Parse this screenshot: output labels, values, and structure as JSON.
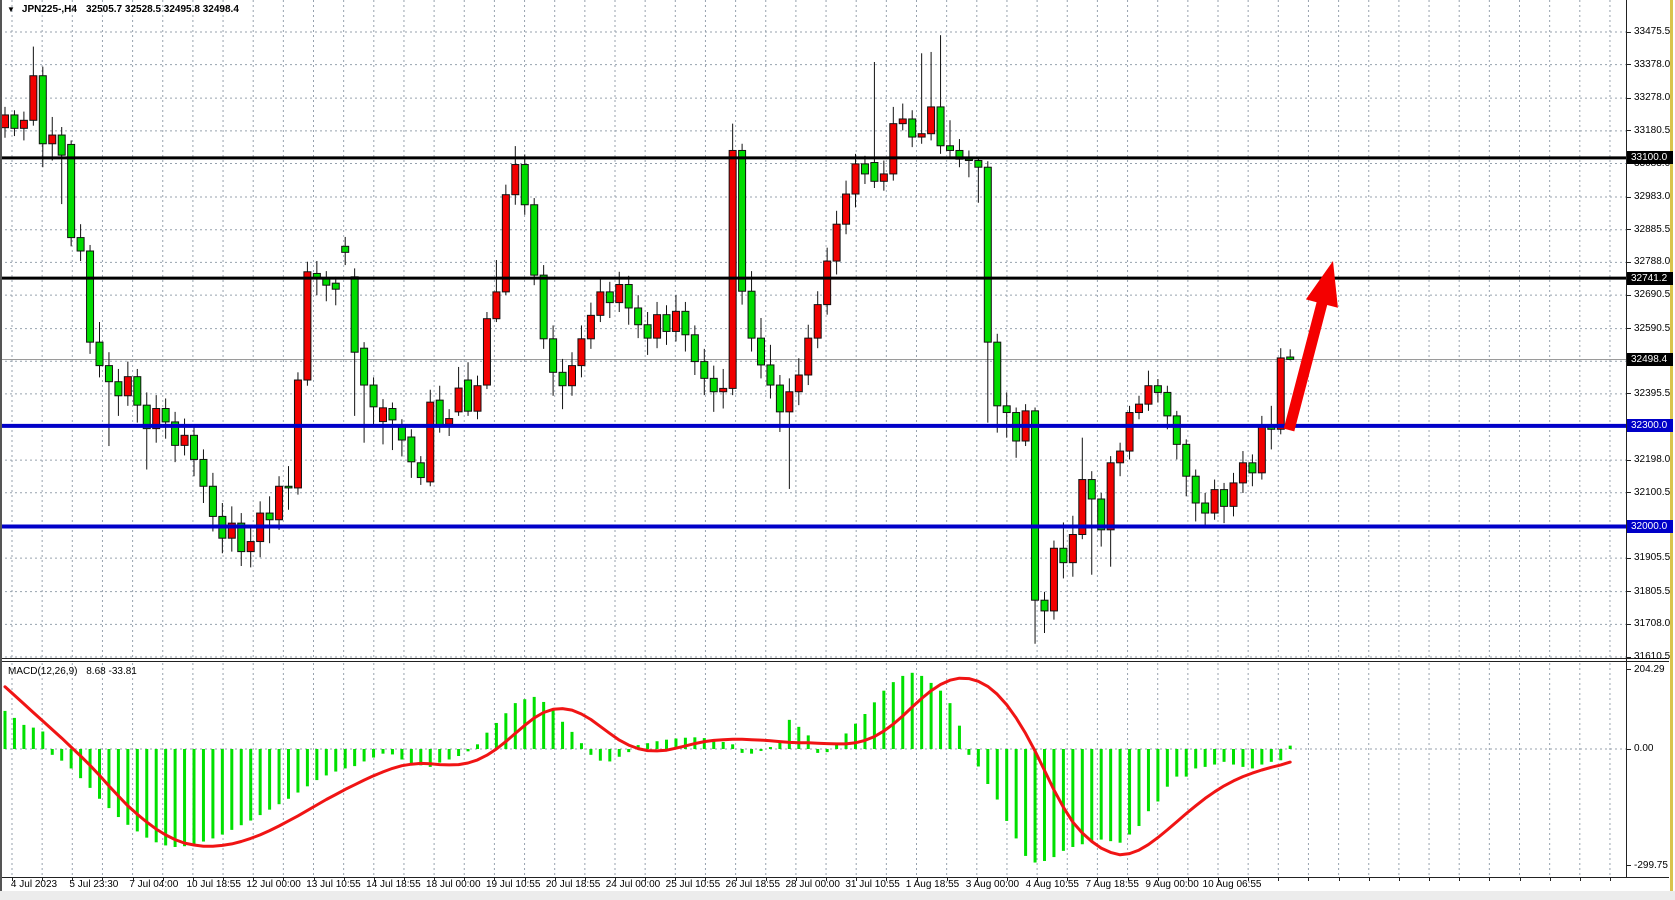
{
  "header": {
    "dropdown_icon": "▼",
    "symbol_period": "JPN225-,H4",
    "ohlc": "32505.7 32528.5 32495.8 32498.4"
  },
  "colors": {
    "background": "#ffffff",
    "grid": "#97a2ae",
    "candle_up": "#f20000",
    "candle_down": "#00dc00",
    "candle_outline": "#111111",
    "macd_histogram": "#00e000",
    "macd_signal": "#f01414",
    "hline_black": "#000000",
    "hline_blue": "#0000c8",
    "bid_line": "#9a9a9a",
    "arrow": "#f40000",
    "axis_text": "#000000",
    "window_edge_right": "#d9c44e",
    "bottom_strip": "#ececec"
  },
  "chart_data": {
    "type": "candlestick",
    "title": "JPN225-,H4",
    "symbol": "JPN225-",
    "timeframe": "H4",
    "current_bar": {
      "open": 32505.7,
      "high": 32528.5,
      "low": 32495.8,
      "close": 32498.4
    },
    "price_axis": {
      "side": "right",
      "ticks": [
        33475.5,
        33378.0,
        33278.0,
        33180.5,
        33083.0,
        32983.0,
        32885.5,
        32788.0,
        32690.5,
        32590.5,
        32395.5,
        32198.0,
        32100.5,
        31905.5,
        31805.5,
        31708.0,
        31610.5
      ],
      "hidden_grid_ticks": [
        32493.0
      ],
      "ylim": [
        31610.5,
        33475.5
      ]
    },
    "time_labels": [
      "4 Jul 2023",
      "5 Jul 23:30",
      "7 Jul 04:00",
      "10 Jul 18:55",
      "12 Jul 00:00",
      "13 Jul 10:55",
      "14 Jul 18:55",
      "18 Jul 00:00",
      "19 Jul 10:55",
      "20 Jul 18:55",
      "24 Jul 00:00",
      "25 Jul 10:55",
      "26 Jul 18:55",
      "28 Jul 00:00",
      "31 Jul 10:55",
      "1 Aug 18:55",
      "3 Aug 00:00",
      "4 Aug 10:55",
      "7 Aug 18:55",
      "9 Aug 00:00",
      "10 Aug 06:55"
    ],
    "hlines": [
      {
        "price": 33100.0,
        "label": "33100.0",
        "color": "#000000",
        "tag_bg": "#000000",
        "width": 3
      },
      {
        "price": 32741.2,
        "label": "32741.2",
        "color": "#000000",
        "tag_bg": "#000000",
        "width": 3
      },
      {
        "price": 32300.0,
        "label": "32300.0",
        "color": "#0000c8",
        "tag_bg": "#0000c8",
        "width": 4
      },
      {
        "price": 32000.0,
        "label": "32000.0",
        "color": "#0000c8",
        "tag_bg": "#0000c8",
        "width": 4
      }
    ],
    "bid_line": {
      "price": 32498.4,
      "label": "32498.4",
      "tag_bg": "#000000"
    },
    "candles_format": "[open, high, low, close]",
    "candles": [
      [
        33190,
        33252,
        33160,
        33228
      ],
      [
        33228,
        33242,
        33165,
        33188
      ],
      [
        33188,
        33238,
        33152,
        33212
      ],
      [
        33212,
        33432,
        33196,
        33345
      ],
      [
        33345,
        33372,
        33072,
        33142
      ],
      [
        33142,
        33222,
        33092,
        33168
      ],
      [
        33168,
        33192,
        32962,
        33108
      ],
      [
        33140,
        33152,
        32836,
        32862
      ],
      [
        32862,
        32902,
        32792,
        32822
      ],
      [
        32822,
        32840,
        32515,
        32550
      ],
      [
        32550,
        32610,
        32445,
        32480
      ],
      [
        32480,
        32520,
        32240,
        32432
      ],
      [
        32432,
        32470,
        32330,
        32390
      ],
      [
        32390,
        32492,
        32360,
        32447
      ],
      [
        32447,
        32470,
        32310,
        32362
      ],
      [
        32362,
        32400,
        32170,
        32292
      ],
      [
        32292,
        32392,
        32250,
        32352
      ],
      [
        32352,
        32382,
        32262,
        32312
      ],
      [
        32312,
        32342,
        32192,
        32242
      ],
      [
        32242,
        32322,
        32212,
        32272
      ],
      [
        32272,
        32300,
        32150,
        32200
      ],
      [
        32200,
        32230,
        32070,
        32120
      ],
      [
        32120,
        32160,
        31985,
        32030
      ],
      [
        32030,
        32070,
        31920,
        31965
      ],
      [
        31965,
        32060,
        31925,
        32010
      ],
      [
        32010,
        32040,
        31882,
        31925
      ],
      [
        31925,
        32000,
        31878,
        31955
      ],
      [
        31955,
        32075,
        31908,
        32040
      ],
      [
        32040,
        32090,
        31950,
        32020
      ],
      [
        32020,
        32150,
        31990,
        32120
      ],
      [
        32120,
        32180,
        32050,
        32115
      ],
      [
        32115,
        32460,
        32095,
        32437
      ],
      [
        32437,
        32790,
        32420,
        32760
      ],
      [
        32755,
        32792,
        32690,
        32740
      ],
      [
        32740,
        32762,
        32672,
        32720
      ],
      [
        32726,
        32745,
        32660,
        32708
      ],
      [
        32836,
        32864,
        32780,
        32818
      ],
      [
        32745,
        32770,
        32330,
        32520
      ],
      [
        32532,
        32550,
        32250,
        32422
      ],
      [
        32422,
        32445,
        32300,
        32357
      ],
      [
        32313,
        32380,
        32245,
        32354
      ],
      [
        32352,
        32370,
        32228,
        32318
      ],
      [
        32297,
        32320,
        32209,
        32258
      ],
      [
        32267,
        32290,
        32145,
        32193
      ],
      [
        32190,
        32210,
        32124,
        32146
      ],
      [
        32133,
        32408,
        32120,
        32371
      ],
      [
        32377,
        32420,
        32280,
        32303
      ],
      [
        32305,
        32350,
        32270,
        32322
      ],
      [
        32342,
        32476,
        32330,
        32413
      ],
      [
        32437,
        32490,
        32330,
        32344
      ],
      [
        32344,
        32450,
        32320,
        32420
      ],
      [
        32422,
        32640,
        32410,
        32620
      ],
      [
        32620,
        32795,
        32610,
        32700
      ],
      [
        32700,
        33020,
        32690,
        32990
      ],
      [
        32990,
        33135,
        32960,
        33080
      ],
      [
        33080,
        33110,
        32930,
        32960
      ],
      [
        32960,
        32980,
        32720,
        32750
      ],
      [
        32750,
        32780,
        32530,
        32560
      ],
      [
        32560,
        32600,
        32390,
        32460
      ],
      [
        32460,
        32500,
        32350,
        32420
      ],
      [
        32420,
        32520,
        32390,
        32480
      ],
      [
        32480,
        32600,
        32445,
        32560
      ],
      [
        32560,
        32668,
        32530,
        32630
      ],
      [
        32630,
        32740,
        32610,
        32700
      ],
      [
        32700,
        32730,
        32622,
        32668
      ],
      [
        32668,
        32760,
        32640,
        32722
      ],
      [
        32722,
        32748,
        32602,
        32652
      ],
      [
        32652,
        32690,
        32562,
        32602
      ],
      [
        32602,
        32640,
        32512,
        32562
      ],
      [
        32562,
        32670,
        32532,
        32632
      ],
      [
        32632,
        32660,
        32542,
        32582
      ],
      [
        32582,
        32690,
        32552,
        32642
      ],
      [
        32642,
        32670,
        32522,
        32572
      ],
      [
        32572,
        32600,
        32452,
        32492
      ],
      [
        32492,
        32530,
        32392,
        32442
      ],
      [
        32442,
        32480,
        32342,
        32402
      ],
      [
        32402,
        32470,
        32352,
        32412
      ],
      [
        32412,
        33202,
        32392,
        33122
      ],
      [
        33122,
        33142,
        32662,
        32702
      ],
      [
        32702,
        32762,
        32522,
        32562
      ],
      [
        32562,
        32622,
        32442,
        32482
      ],
      [
        32482,
        32542,
        32382,
        32422
      ],
      [
        32422,
        32452,
        32282,
        32342
      ],
      [
        32342,
        32442,
        32112,
        32402
      ],
      [
        32402,
        32502,
        32362,
        32452
      ],
      [
        32452,
        32602,
        32422,
        32562
      ],
      [
        32562,
        32702,
        32532,
        32662
      ],
      [
        32662,
        32832,
        32632,
        32792
      ],
      [
        32792,
        32942,
        32752,
        32902
      ],
      [
        32902,
        33032,
        32872,
        32992
      ],
      [
        32992,
        33112,
        32952,
        33082
      ],
      [
        33082,
        33106,
        33022,
        33052
      ],
      [
        33086,
        33386,
        33010,
        33030
      ],
      [
        33030,
        33092,
        33002,
        33052
      ],
      [
        33052,
        33252,
        33032,
        33202
      ],
      [
        33202,
        33262,
        33182,
        33216
      ],
      [
        33216,
        33242,
        33132,
        33162
      ],
      [
        33162,
        33412,
        33142,
        33172
      ],
      [
        33172,
        33416,
        33152,
        33252
      ],
      [
        33252,
        33466,
        33112,
        33136
      ],
      [
        33136,
        33212,
        33096,
        33122
      ],
      [
        33122,
        33156,
        33072,
        33096
      ],
      [
        33096,
        33122,
        33042,
        33092
      ],
      [
        33092,
        33102,
        32966,
        33072
      ],
      [
        33072,
        33090,
        32310,
        32550
      ],
      [
        32550,
        32575,
        32280,
        32360
      ],
      [
        32360,
        32400,
        32265,
        32340
      ],
      [
        32340,
        32355,
        32205,
        32255
      ],
      [
        32255,
        32365,
        32240,
        32345
      ],
      [
        32345,
        32355,
        31650,
        31780
      ],
      [
        31780,
        31805,
        31682,
        31748
      ],
      [
        31748,
        31958,
        31722,
        31935
      ],
      [
        31935,
        32012,
        31845,
        31892
      ],
      [
        31892,
        32032,
        31850,
        31976
      ],
      [
        31976,
        32265,
        31962,
        32140
      ],
      [
        32140,
        32165,
        31856,
        32082
      ],
      [
        32082,
        32100,
        31940,
        31990
      ],
      [
        31990,
        32210,
        31880,
        32190
      ],
      [
        32190,
        32250,
        32150,
        32225
      ],
      [
        32225,
        32360,
        32200,
        32340
      ],
      [
        32340,
        32390,
        32320,
        32365
      ],
      [
        32365,
        32465,
        32345,
        32420
      ],
      [
        32420,
        32440,
        32370,
        32400
      ],
      [
        32400,
        32420,
        32290,
        32330
      ],
      [
        32330,
        32345,
        32200,
        32245
      ],
      [
        32245,
        32260,
        32090,
        32150
      ],
      [
        32150,
        32170,
        32015,
        32070
      ],
      [
        32070,
        32100,
        31995,
        32040
      ],
      [
        32040,
        32140,
        32020,
        32110
      ],
      [
        32110,
        32130,
        32010,
        32060
      ],
      [
        32060,
        32160,
        32030,
        32130
      ],
      [
        32130,
        32225,
        32100,
        32190
      ],
      [
        32190,
        32215,
        32120,
        32160
      ],
      [
        32160,
        32330,
        32140,
        32300
      ],
      [
        32300,
        32360,
        32230,
        32290
      ],
      [
        32290,
        32532,
        32275,
        32503
      ],
      [
        32505.7,
        32528.5,
        32495.8,
        32498.4
      ]
    ],
    "macd": {
      "label": "MACD(12,26,9)",
      "values_text": "8.68 -33.81",
      "main_value": 8.68,
      "signal_value": -33.81,
      "axis_labels": [
        "204.29",
        "0.00",
        "-299.75"
      ],
      "axis_values": [
        204.29,
        0.0,
        -299.75
      ],
      "histogram": [
        98,
        80,
        62,
        55,
        45,
        -15,
        -30,
        -50,
        -75,
        -100,
        -128,
        -152,
        -175,
        -195,
        -212,
        -228,
        -240,
        -248,
        -252,
        -250,
        -245,
        -238,
        -230,
        -220,
        -208,
        -196,
        -184,
        -170,
        -156,
        -142,
        -128,
        -112,
        -96,
        -80,
        -68,
        -58,
        -50,
        -44,
        -32,
        -22,
        -12,
        -14,
        -27,
        -40,
        -42,
        -46,
        -35,
        -27,
        -18,
        -6,
        12,
        42,
        67,
        92,
        118,
        128,
        134,
        121,
        100,
        70,
        44,
        15,
        -15,
        -30,
        -32,
        -20,
        -8,
        10,
        15,
        20,
        24,
        27,
        29,
        30,
        28,
        25,
        18,
        12,
        -10,
        -12,
        -5,
        5,
        20,
        75,
        57,
        35,
        -10,
        -8,
        15,
        40,
        65,
        90,
        120,
        150,
        172,
        188,
        196,
        188,
        170,
        150,
        118,
        60,
        -15,
        -45,
        -90,
        -130,
        -185,
        -230,
        -275,
        -292,
        -288,
        -278,
        -262,
        -252,
        -245,
        -238,
        -233,
        -237,
        -241,
        -220,
        -198,
        -160,
        -135,
        -97,
        -71,
        -71,
        -50,
        -46,
        -40,
        -33,
        -40,
        -46,
        -50,
        -40,
        -33,
        -29,
        8.68
      ],
      "signal": [
        160,
        138,
        116,
        94,
        72,
        50,
        28,
        5,
        -18,
        -42,
        -68,
        -95,
        -121,
        -146,
        -168,
        -188,
        -206,
        -221,
        -233,
        -242,
        -247,
        -250,
        -250,
        -248,
        -244,
        -238,
        -230,
        -221,
        -210,
        -198,
        -185,
        -172,
        -158,
        -144,
        -130,
        -117,
        -104,
        -92,
        -80,
        -69,
        -59,
        -50,
        -43,
        -39,
        -37,
        -38,
        -40,
        -41,
        -40,
        -36,
        -28,
        -16,
        0,
        19,
        40,
        61,
        80,
        94,
        102,
        104,
        100,
        90,
        76,
        58,
        40,
        23,
        10,
        1,
        -4,
        -5,
        -3,
        2,
        8,
        14,
        19,
        22,
        24,
        25,
        25,
        24,
        23,
        21,
        19,
        17,
        16,
        16,
        15,
        14,
        13,
        13,
        16,
        22,
        32,
        46,
        64,
        85,
        108,
        130,
        150,
        166,
        177,
        182,
        181,
        174,
        161,
        141,
        114,
        80,
        40,
        -5,
        -55,
        -105,
        -150,
        -188,
        -216,
        -238,
        -255,
        -266,
        -272,
        -269,
        -260,
        -246,
        -228,
        -208,
        -187,
        -166,
        -146,
        -127,
        -110,
        -95,
        -82,
        -71,
        -62,
        -54,
        -47,
        -41,
        -33.81
      ]
    },
    "annotations": [
      {
        "kind": "arrow",
        "from": [
          1289,
          430
        ],
        "to": [
          1333,
          261
        ],
        "color": "#f40000",
        "shaft_width": 11,
        "head_width": 33,
        "head_length": 44
      }
    ]
  }
}
